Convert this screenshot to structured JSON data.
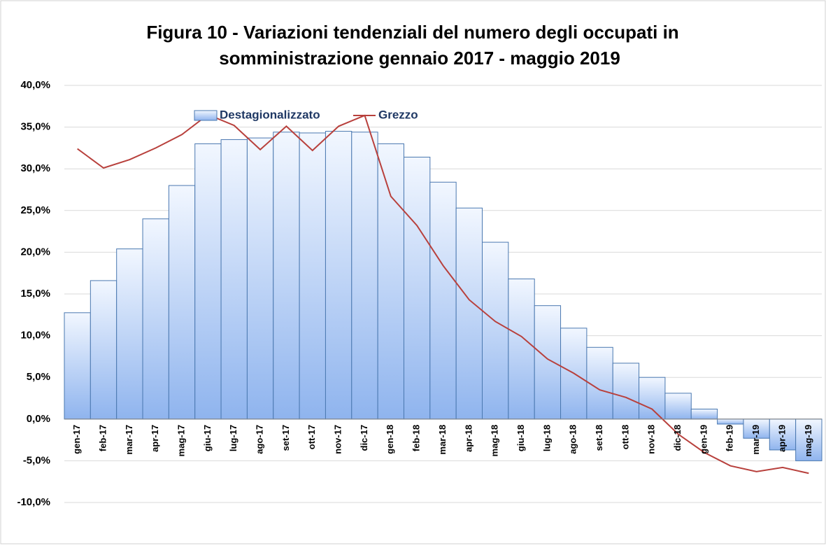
{
  "chart_data": {
    "type": "bar_line",
    "title": [
      "Figura 10 - Variazioni tendenziali del numero degli occupati in",
      "somministrazione gennaio 2017 - maggio 2019"
    ],
    "categories": [
      "gen-17",
      "feb-17",
      "mar-17",
      "apr-17",
      "mag-17",
      "giu-17",
      "lug-17",
      "ago-17",
      "set-17",
      "ott-17",
      "nov-17",
      "dic-17",
      "gen-18",
      "feb-18",
      "mar-18",
      "apr-18",
      "mag-18",
      "giu-18",
      "lug-18",
      "ago-18",
      "set-18",
      "ott-18",
      "nov-18",
      "dic-18",
      "gen-19",
      "feb-19",
      "mar-19",
      "apr-19",
      "mag-19"
    ],
    "series": [
      {
        "name": "Destagionalizzato",
        "type": "bar",
        "color": "#8fb4ee",
        "values": [
          12.75,
          16.6,
          20.4,
          24.0,
          28.0,
          33.0,
          33.5,
          33.7,
          34.4,
          34.3,
          34.5,
          34.4,
          33.0,
          31.4,
          28.4,
          25.3,
          21.2,
          16.8,
          13.6,
          10.9,
          8.6,
          6.7,
          5.0,
          3.1,
          1.2,
          -0.6,
          -2.3,
          -3.7,
          -5.0
        ]
      },
      {
        "name": "Grezzo",
        "type": "line",
        "color": "#b8403c",
        "values": [
          32.4,
          30.1,
          31.1,
          32.5,
          34.1,
          36.5,
          35.2,
          32.3,
          35.1,
          32.2,
          35.1,
          36.4,
          26.7,
          23.2,
          18.4,
          14.3,
          11.7,
          9.9,
          7.2,
          5.5,
          3.5,
          2.6,
          1.2,
          -1.8,
          -4.0,
          -5.6,
          -6.3,
          -5.8,
          -6.5
        ]
      }
    ],
    "ylim": [
      -10,
      40
    ],
    "yticks": [
      {
        "value": -10,
        "label": "-10,0%"
      },
      {
        "value": -5,
        "label": "-5,0%"
      },
      {
        "value": 0,
        "label": "0,0%"
      },
      {
        "value": 5,
        "label": "5,0%"
      },
      {
        "value": 10,
        "label": "10,0%"
      },
      {
        "value": 15,
        "label": "15,0%"
      },
      {
        "value": 20,
        "label": "20,0%"
      },
      {
        "value": 25,
        "label": "25,0%"
      },
      {
        "value": 30,
        "label": "30,0%"
      },
      {
        "value": 35,
        "label": "35,0%"
      },
      {
        "value": 40,
        "label": "40,0%"
      }
    ],
    "grid": true,
    "legend": "top"
  }
}
